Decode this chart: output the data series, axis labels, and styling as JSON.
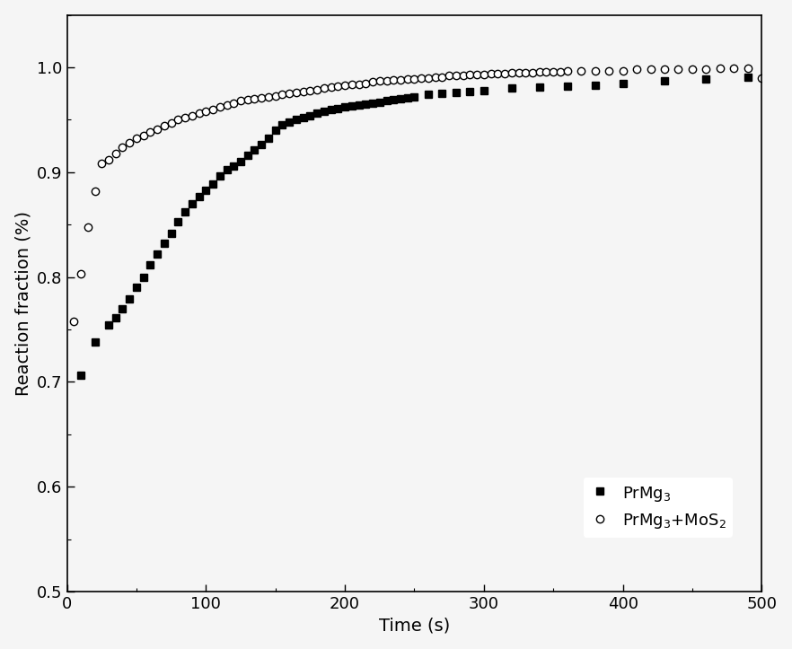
{
  "title": "",
  "xlabel": "Time (s)",
  "ylabel": "Reaction fraction (%)",
  "xlim": [
    0,
    500
  ],
  "ylim": [
    0.5,
    1.05
  ],
  "yticks": [
    0.5,
    0.6,
    0.7,
    0.8,
    0.9,
    1.0
  ],
  "xticks": [
    0,
    100,
    200,
    300,
    400,
    500
  ],
  "background_color": "#f5f5f5",
  "plot_bg_color": "#f5f5f5",
  "series1_label": "PrMg$_3$",
  "series2_label": "PrMg$_3$+MoS$_2$",
  "series1_x": [
    10,
    20,
    30,
    35,
    40,
    45,
    50,
    55,
    60,
    65,
    70,
    75,
    80,
    85,
    90,
    95,
    100,
    105,
    110,
    115,
    120,
    125,
    130,
    135,
    140,
    145,
    150,
    155,
    160,
    165,
    170,
    175,
    180,
    185,
    190,
    195,
    200,
    205,
    210,
    215,
    220,
    225,
    230,
    235,
    240,
    245,
    250,
    260,
    270,
    280,
    290,
    300,
    320,
    340,
    360,
    380,
    400,
    430,
    460,
    490
  ],
  "series1_y": [
    0.706,
    0.738,
    0.754,
    0.761,
    0.77,
    0.779,
    0.79,
    0.8,
    0.812,
    0.822,
    0.832,
    0.842,
    0.853,
    0.862,
    0.87,
    0.877,
    0.883,
    0.889,
    0.896,
    0.902,
    0.906,
    0.91,
    0.916,
    0.921,
    0.926,
    0.932,
    0.94,
    0.945,
    0.948,
    0.95,
    0.952,
    0.954,
    0.956,
    0.958,
    0.96,
    0.961,
    0.962,
    0.963,
    0.964,
    0.965,
    0.966,
    0.967,
    0.968,
    0.969,
    0.97,
    0.971,
    0.972,
    0.974,
    0.975,
    0.976,
    0.977,
    0.978,
    0.98,
    0.981,
    0.982,
    0.983,
    0.985,
    0.987,
    0.989,
    0.991
  ],
  "series2_x": [
    5,
    10,
    15,
    20,
    25,
    30,
    35,
    40,
    45,
    50,
    55,
    60,
    65,
    70,
    75,
    80,
    85,
    90,
    95,
    100,
    105,
    110,
    115,
    120,
    125,
    130,
    135,
    140,
    145,
    150,
    155,
    160,
    165,
    170,
    175,
    180,
    185,
    190,
    195,
    200,
    205,
    210,
    215,
    220,
    225,
    230,
    235,
    240,
    245,
    250,
    255,
    260,
    265,
    270,
    275,
    280,
    285,
    290,
    295,
    300,
    305,
    310,
    315,
    320,
    325,
    330,
    335,
    340,
    345,
    350,
    355,
    360,
    370,
    380,
    390,
    400,
    410,
    420,
    430,
    440,
    450,
    460,
    470,
    480,
    490,
    500
  ],
  "series2_y": [
    0.758,
    0.803,
    0.848,
    0.882,
    0.908,
    0.912,
    0.918,
    0.924,
    0.928,
    0.932,
    0.935,
    0.938,
    0.941,
    0.944,
    0.947,
    0.95,
    0.952,
    0.954,
    0.956,
    0.958,
    0.96,
    0.962,
    0.964,
    0.966,
    0.968,
    0.969,
    0.97,
    0.971,
    0.972,
    0.973,
    0.974,
    0.975,
    0.976,
    0.977,
    0.978,
    0.979,
    0.98,
    0.981,
    0.982,
    0.983,
    0.984,
    0.984,
    0.985,
    0.986,
    0.987,
    0.987,
    0.988,
    0.988,
    0.989,
    0.989,
    0.99,
    0.99,
    0.991,
    0.991,
    0.992,
    0.992,
    0.992,
    0.993,
    0.993,
    0.993,
    0.994,
    0.994,
    0.994,
    0.995,
    0.995,
    0.995,
    0.995,
    0.996,
    0.996,
    0.996,
    0.996,
    0.997,
    0.997,
    0.997,
    0.997,
    0.997,
    0.998,
    0.998,
    0.998,
    0.998,
    0.998,
    0.998,
    0.999,
    0.999,
    0.999,
    0.99
  ],
  "markersize1": 6,
  "markersize2": 6,
  "xlabel_fontsize": 14,
  "ylabel_fontsize": 14,
  "tick_fontsize": 13,
  "legend_fontsize": 13
}
